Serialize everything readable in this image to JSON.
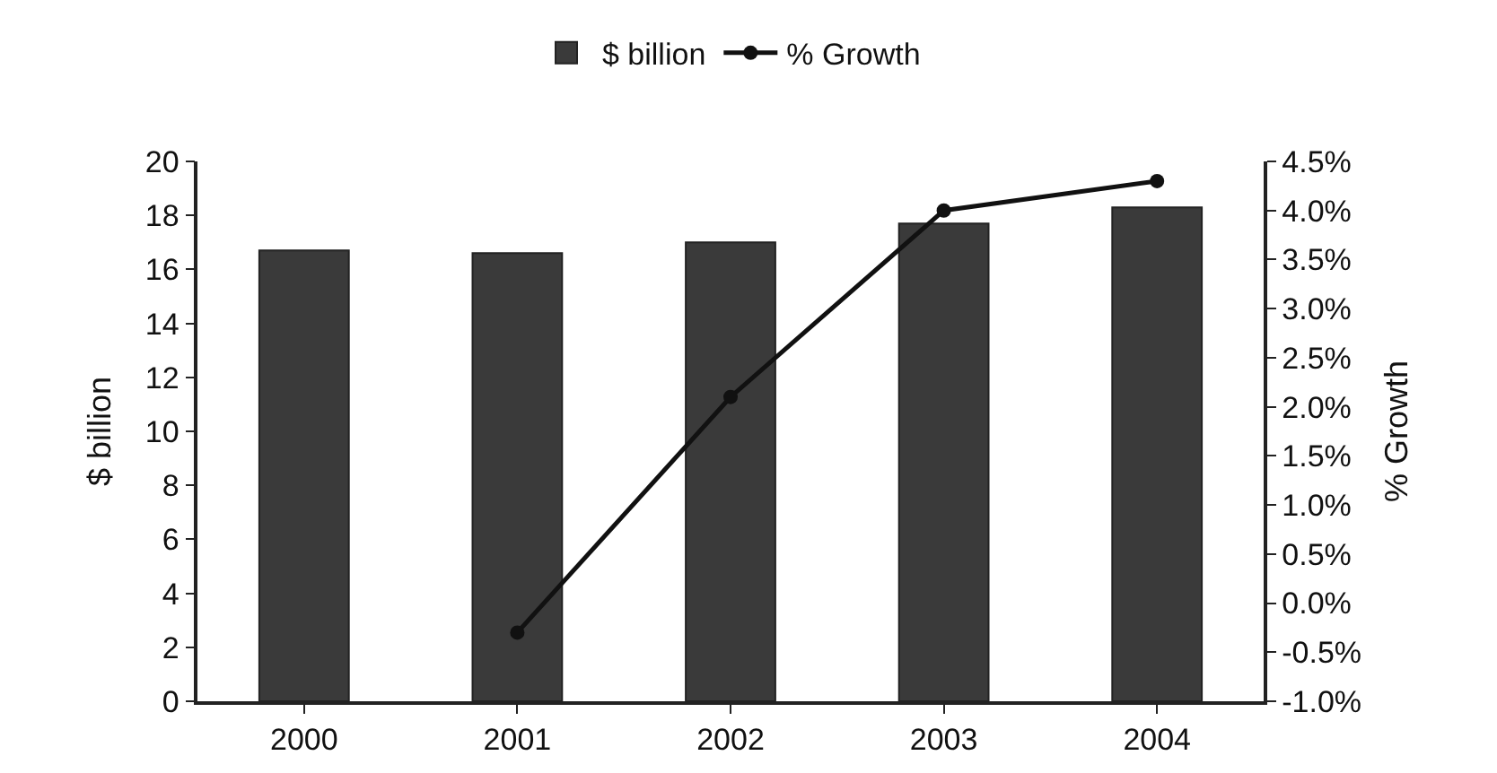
{
  "chart_data": {
    "type": "bar",
    "ylabel": "$ billion",
    "y2label": "% Growth",
    "categories": [
      "2000",
      "2001",
      "2002",
      "2003",
      "2004"
    ],
    "series": [
      {
        "name": "$ billion",
        "color": "#3a3a3a",
        "values": [
          16.7,
          16.6,
          17.0,
          17.7,
          18.3
        ]
      },
      {
        "name": "% Growth",
        "type": "line",
        "axis": "y2",
        "color": "#111111",
        "marker": "circle",
        "line_style": "solid",
        "values": [
          null,
          -0.3,
          2.1,
          4.0,
          4.3
        ]
      }
    ],
    "ylim": [
      0,
      20
    ],
    "yticks": [
      0,
      2,
      4,
      6,
      8,
      10,
      12,
      14,
      16,
      18,
      20
    ],
    "y2lim": [
      -1,
      4.5
    ],
    "y2ticks": [
      {
        "value": -1,
        "label": "-1.0%"
      },
      {
        "value": -0.5,
        "label": "-0.5%"
      },
      {
        "value": 0,
        "label": "0.0%"
      },
      {
        "value": 0.5,
        "label": "0.5%"
      },
      {
        "value": 1,
        "label": "1.0%"
      },
      {
        "value": 1.5,
        "label": "1.5%"
      },
      {
        "value": 2,
        "label": "2.0%"
      },
      {
        "value": 2.5,
        "label": "2.5%"
      },
      {
        "value": 3,
        "label": "3.0%"
      },
      {
        "value": 3.5,
        "label": "3.5%"
      },
      {
        "value": 4,
        "label": "4.0%"
      },
      {
        "value": 4.5,
        "label": "4.5%"
      }
    ],
    "grid": false,
    "legend": "top"
  }
}
